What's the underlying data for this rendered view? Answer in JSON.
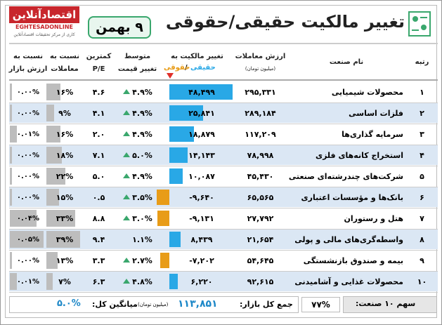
{
  "header": {
    "logo": "اقتصادآنلاین",
    "logo_en": "EGHTESADONLINE",
    "logo_note": "کاری از مرکز تحقیقات اقتصادآنلاین",
    "title": "تغییر مالکیت حقیقی/حقوقی",
    "date": "۹ بهمن"
  },
  "table": {
    "head": {
      "rank": "رتبه",
      "name": "نام صنعت",
      "value": "ارزش معاملات",
      "value_unit": "(میلیون تومان)",
      "own": "تغییر مالکیت به",
      "own_a": "حقیقی",
      "own_sep": "/",
      "own_b": "حقوقی",
      "price_1": "متوسط",
      "price_2": "تغییر قیمت",
      "pe_1": "کمترین",
      "pe_2": "P/E",
      "rt_1": "نسبت به",
      "rt_2": "معاملات",
      "rm_1": "نسبت به",
      "rm_2": "ارزش بازار"
    },
    "rows": [
      [
        "۱",
        "محصولات شیمیایی",
        "۲۹۵,۳۳۱",
        "۴۸,۴۹۹",
        "۴.۹%",
        "۴.۶",
        "۱۶%",
        "۰.۰۰%"
      ],
      [
        "۲",
        "فلزات اساسی",
        "۲۸۹,۱۸۴",
        "۲۵,۸۴۱",
        "۴.۹%",
        "۴.۱",
        "۹%",
        "۰.۰۰%"
      ],
      [
        "۳",
        "سرمایه گذاری‌ها",
        "۱۱۷,۲۰۹",
        "۱۸,۸۷۹",
        "۴.۹%",
        "۲.۰",
        "۱۶%",
        "۰.۰۱%"
      ],
      [
        "۴",
        "استخراج کانه‌های فلزی",
        "۷۸,۹۹۸",
        "۱۴,۱۴۳",
        "۵.۰%",
        "۷.۱",
        "۱۸%",
        "۰.۰۰%"
      ],
      [
        "۵",
        "شرکت‌های چندرشته‌ای صنعتی",
        "۴۵,۴۳۰",
        "۱۰,۰۸۷",
        "۴.۹%",
        "۵.۰",
        "۲۲%",
        "۰.۰۰%"
      ],
      [
        "۶",
        "بانک‌ها و مؤسسات اعتباری",
        "۶۵,۵۶۵",
        "-۹,۶۴۰",
        "۳.۵%",
        "۰.۵",
        "۱۵%",
        "۰.۰۰%"
      ],
      [
        "۷",
        "هتل و رستوران",
        "۲۷,۷۹۲",
        "-۹,۱۳۱",
        "۳.۰%",
        "۸.۸",
        "۳۳%",
        "۰.۰۴%"
      ],
      [
        "۸",
        "واسطه‌گری‌های مالی و پولی",
        "۲۱,۶۵۴",
        "۸,۴۳۹",
        "۱.۱%",
        "۹.۴",
        "۳۹%",
        "۰.۰۵%"
      ],
      [
        "۹",
        "بیمه و صندوق بازنشستگی",
        "۵۴,۶۴۵",
        "-۷,۲۰۲",
        "۲.۷%",
        "۳.۳",
        "۱۳%",
        "۰.۰۰%"
      ],
      [
        "۱۰",
        "محصولات غذایی و آشامیدنی",
        "۹۲,۶۱۵",
        "۶,۲۲۰",
        "۴.۸%",
        "۶.۳",
        "۷%",
        "۰.۰۱%"
      ]
    ],
    "trend": [
      "up",
      "up",
      "up",
      "up",
      "up",
      "up",
      "up",
      "flat",
      "up",
      "up"
    ],
    "colors": {
      "positive": "#29a8e6",
      "negative": "#e89c18",
      "share": "#bdbdbd",
      "row_alt": "#dbe7f4",
      "up": "#3aa76d"
    }
  },
  "footer": {
    "share_label": "سهم ۱۰ صنعت:",
    "share": "۷۷%",
    "total_label": "جمع کل بازار:",
    "total": "۱۱۳,۸۵۱",
    "total_unit": "(میلیون تومان)",
    "avg_label": "میانگین کل:",
    "avg": "۵.۰%"
  }
}
